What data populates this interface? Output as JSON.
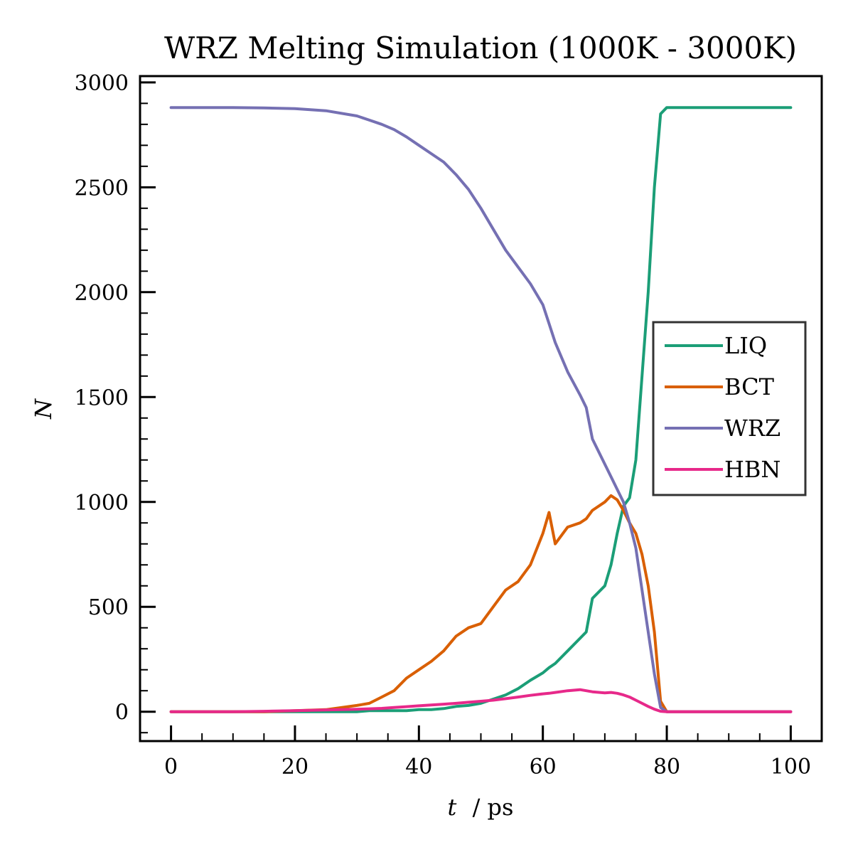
{
  "chart_data": {
    "type": "line",
    "title": "WRZ Melting Simulation (1000K - 3000K)",
    "xlabel": "t",
    "xlabel_unit": "/ ps",
    "ylabel": "N",
    "xlim": [
      -5,
      105
    ],
    "ylim": [
      -140,
      3030
    ],
    "x_ticks": [
      0,
      20,
      40,
      60,
      80,
      100
    ],
    "x_minor_step": 5,
    "y_ticks": [
      0,
      500,
      1000,
      1500,
      2000,
      2500,
      3000
    ],
    "y_minor_step": 100,
    "grid": false,
    "legend_position": "center-right",
    "x": [
      0,
      5,
      10,
      15,
      20,
      25,
      30,
      32,
      34,
      36,
      38,
      40,
      42,
      44,
      46,
      48,
      50,
      52,
      54,
      56,
      58,
      60,
      61,
      62,
      64,
      66,
      67,
      68,
      70,
      71,
      72,
      73,
      74,
      75,
      76,
      77,
      78,
      79,
      80,
      85,
      90,
      95,
      100
    ],
    "series": [
      {
        "name": "LIQ",
        "color": "#1b9e77",
        "values": [
          0,
          0,
          0,
          0,
          0,
          0,
          0,
          5,
          5,
          5,
          5,
          10,
          10,
          15,
          25,
          30,
          40,
          60,
          80,
          110,
          150,
          185,
          210,
          230,
          290,
          350,
          380,
          540,
          600,
          700,
          850,
          980,
          1020,
          1200,
          1600,
          2000,
          2500,
          2850,
          2880,
          2880,
          2880,
          2880,
          2880
        ]
      },
      {
        "name": "BCT",
        "color": "#d95f02",
        "values": [
          0,
          0,
          0,
          0,
          5,
          10,
          30,
          40,
          70,
          100,
          160,
          200,
          240,
          290,
          360,
          400,
          420,
          500,
          580,
          620,
          700,
          850,
          950,
          800,
          880,
          900,
          920,
          960,
          1000,
          1030,
          1010,
          960,
          900,
          850,
          750,
          600,
          380,
          50,
          0,
          0,
          0,
          0,
          0
        ]
      },
      {
        "name": "WRZ",
        "color": "#7570b3",
        "values": [
          2880,
          2880,
          2880,
          2878,
          2875,
          2865,
          2840,
          2820,
          2800,
          2775,
          2740,
          2700,
          2660,
          2620,
          2560,
          2490,
          2400,
          2300,
          2200,
          2120,
          2040,
          1940,
          1850,
          1760,
          1620,
          1510,
          1450,
          1300,
          1180,
          1120,
          1060,
          1000,
          900,
          780,
          580,
          380,
          180,
          20,
          0,
          0,
          0,
          0,
          0
        ]
      },
      {
        "name": "HBN",
        "color": "#e7298a",
        "values": [
          0,
          0,
          0,
          2,
          5,
          8,
          12,
          14,
          16,
          20,
          24,
          28,
          32,
          36,
          40,
          45,
          50,
          55,
          62,
          70,
          78,
          85,
          88,
          92,
          100,
          105,
          100,
          95,
          90,
          92,
          88,
          80,
          70,
          55,
          40,
          25,
          12,
          2,
          0,
          0,
          0,
          0,
          0
        ]
      }
    ]
  }
}
